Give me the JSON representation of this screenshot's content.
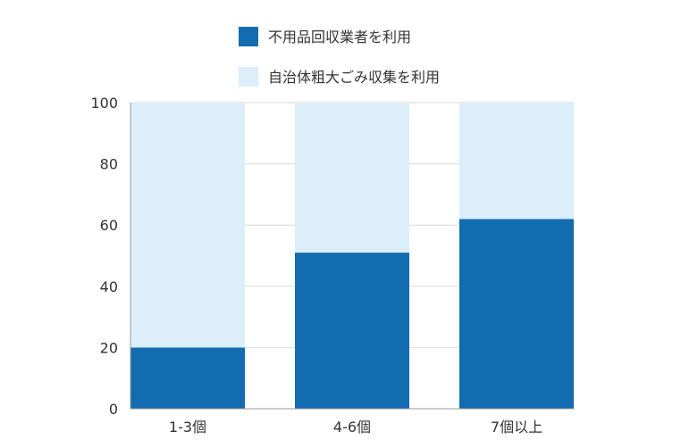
{
  "chart_data": {
    "type": "bar",
    "stacked": true,
    "title": "",
    "xlabel": "",
    "ylabel": "",
    "categories": [
      "1-3個",
      "4-6個",
      "7個以上"
    ],
    "series": [
      {
        "name": "不用品回収業者を利用",
        "color": "#136bb0",
        "values": [
          20,
          51,
          62
        ]
      },
      {
        "name": "自治体粗大ごみ収集を利用",
        "color": "#dbeefa",
        "values": [
          80,
          49,
          38
        ]
      }
    ],
    "ylim": [
      0,
      100
    ],
    "yticks": [
      0,
      20,
      40,
      60,
      80,
      100
    ],
    "grid": true,
    "gridColor": "#d9d9d9",
    "legend_position": "top-center"
  }
}
